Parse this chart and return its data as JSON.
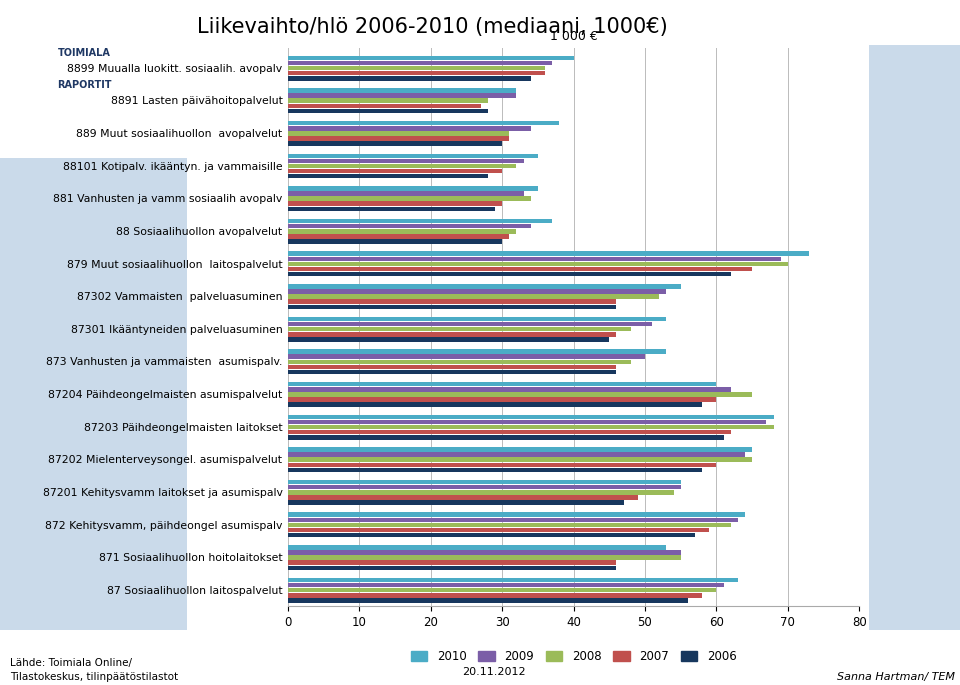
{
  "title": "Liikevaihto/hlö 2006-2010 (mediaani, 1000€)",
  "chart_title": "1 000 €",
  "categories": [
    "8899 Muualla luokitt. sosiaalih. avopalv",
    "8891 Lasten päivähoitopalvelut",
    "889 Muut sosiaalihuollon  avopalvelut",
    "88101 Kotipalv. ikääntyn. ja vammaisille",
    "881 Vanhusten ja vamm sosiaalih avopalv",
    "88 Sosiaalihuollon avopalvelut",
    "879 Muut sosiaalihuollon  laitospalvelut",
    "87302 Vammaisten  palveluasuminen",
    "87301 Ikääntyneiden palveluasuminen",
    "873 Vanhusten ja vammaisten  asumispalv.",
    "87204 Päihdeongelmaisten asumispalvelut",
    "87203 Päihdeongelmaisten laitokset",
    "87202 Mielenterveysongel. asumispalvelut",
    "87201 Kehitysvamm laitokset ja asumispalv",
    "872 Kehitysvamm, päihdeongel asumispalv",
    "871 Sosiaalihuollon hoitolaitokset",
    "87 Sosiaalihuollon laitospalvelut"
  ],
  "series": {
    "2010": [
      40,
      32,
      38,
      35,
      35,
      37,
      73,
      55,
      53,
      53,
      60,
      68,
      65,
      55,
      64,
      53,
      63
    ],
    "2009": [
      37,
      32,
      34,
      33,
      33,
      34,
      69,
      53,
      51,
      50,
      62,
      67,
      64,
      55,
      63,
      55,
      61
    ],
    "2008": [
      36,
      28,
      31,
      32,
      34,
      32,
      70,
      52,
      48,
      48,
      65,
      68,
      65,
      54,
      62,
      55,
      60
    ],
    "2007": [
      36,
      27,
      31,
      30,
      30,
      31,
      65,
      46,
      46,
      46,
      60,
      62,
      60,
      49,
      59,
      46,
      58
    ],
    "2006": [
      34,
      28,
      30,
      28,
      29,
      30,
      62,
      46,
      45,
      46,
      58,
      61,
      58,
      47,
      57,
      46,
      56
    ]
  },
  "colors": {
    "2010": "#4BACC6",
    "2009": "#7B5EA7",
    "2008": "#9BBB59",
    "2007": "#C0504D",
    "2006": "#17375E"
  },
  "xlim": [
    0,
    80
  ],
  "xticks": [
    0,
    10,
    20,
    30,
    40,
    50,
    60,
    70,
    80
  ],
  "footer_left": "Lähde: Toimiala Online/\nTilastokeskus, tilinpäätöstilastot",
  "footer_center": "20.11.2012",
  "footer_right": "Sanna Hartman/ TEM"
}
